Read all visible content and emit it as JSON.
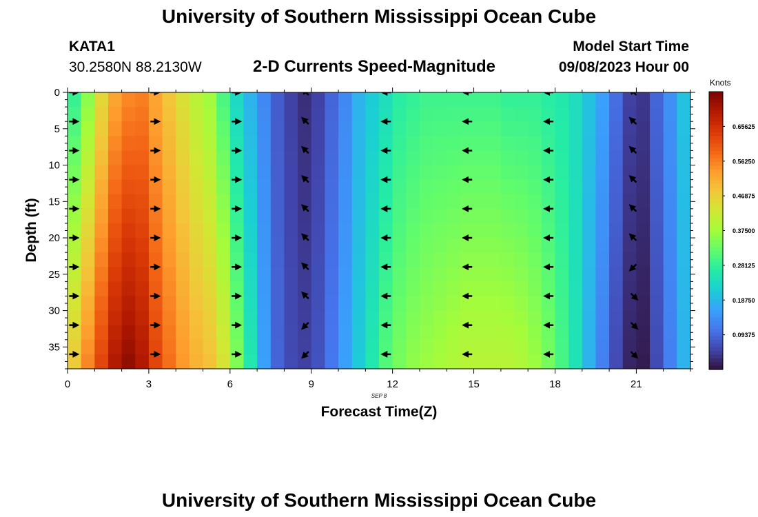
{
  "header": {
    "title": "University of Southern Mississippi Ocean Cube",
    "station": "KATA1",
    "coords": "30.2580N  88.2130W",
    "subtitle": "2-D Currents Speed-Magnitude",
    "model_start_label": "Model Start Time",
    "model_start_value": "09/08/2023 Hour 00"
  },
  "footer": {
    "title": "University of Southern Mississippi Ocean Cube"
  },
  "colorbar": {
    "unit": "Knots",
    "tick_labels": [
      "0.65625",
      "0.56250",
      "0.46875",
      "0.37500",
      "0.28125",
      "0.18750",
      "0.09375"
    ],
    "tick_values": [
      0.65625,
      0.5625,
      0.46875,
      0.375,
      0.28125,
      0.1875,
      0.09375
    ],
    "range": [
      0,
      0.75
    ],
    "colormap": [
      "#30123b",
      "#4145ab",
      "#4675ed",
      "#39a2fc",
      "#1bcfd4",
      "#24eca6",
      "#61fc6c",
      "#a4fc3b",
      "#d1e834",
      "#f3c63a",
      "#fe9b2d",
      "#f36315",
      "#d93806",
      "#b11901",
      "#7a0402"
    ]
  },
  "chart_data": {
    "type": "heatmap",
    "title": "2-D Currents Speed-Magnitude",
    "xlabel": "Forecast Time(Z)",
    "ylabel": "Depth (ft)",
    "date_label": "SEP 8",
    "x_ticks": [
      0,
      3,
      6,
      9,
      12,
      15,
      18,
      21
    ],
    "y_ticks": [
      0,
      5,
      10,
      15,
      20,
      25,
      30,
      35
    ],
    "xlim": [
      0,
      23
    ],
    "ylim": [
      38,
      0
    ],
    "value_unit": "Knots",
    "x": [
      0,
      0.5,
      1,
      1.5,
      2,
      2.5,
      3,
      3.5,
      4,
      4.5,
      5,
      5.5,
      6,
      6.5,
      7,
      7.5,
      8,
      8.5,
      9,
      9.5,
      10,
      10.5,
      11,
      11.5,
      12,
      12.5,
      13,
      13.5,
      14,
      14.5,
      15,
      15.5,
      16,
      16.5,
      17,
      17.5,
      18,
      18.5,
      19,
      19.5,
      20,
      20.5,
      21,
      21.5,
      22,
      22.5
    ],
    "surface_speed": [
      0.28,
      0.35,
      0.45,
      0.52,
      0.55,
      0.56,
      0.52,
      0.48,
      0.44,
      0.4,
      0.37,
      0.3,
      0.23,
      0.18,
      0.13,
      0.08,
      0.05,
      0.03,
      0.05,
      0.09,
      0.13,
      0.18,
      0.21,
      0.24,
      0.27,
      0.28,
      0.29,
      0.29,
      0.29,
      0.29,
      0.29,
      0.29,
      0.28,
      0.28,
      0.28,
      0.27,
      0.26,
      0.24,
      0.2,
      0.16,
      0.1,
      0.05,
      0.04,
      0.09,
      0.14,
      0.2
    ],
    "bottom_speed": [
      0.48,
      0.56,
      0.63,
      0.7,
      0.73,
      0.7,
      0.63,
      0.58,
      0.54,
      0.51,
      0.49,
      0.44,
      0.35,
      0.26,
      0.16,
      0.09,
      0.06,
      0.05,
      0.07,
      0.11,
      0.16,
      0.21,
      0.26,
      0.31,
      0.34,
      0.36,
      0.37,
      0.38,
      0.39,
      0.4,
      0.4,
      0.4,
      0.4,
      0.39,
      0.37,
      0.34,
      0.3,
      0.25,
      0.18,
      0.12,
      0.06,
      0.02,
      0.01,
      0.06,
      0.12,
      0.18
    ],
    "vectors": {
      "times": [
        0.2,
        3.2,
        6.2,
        8.8,
        11.8,
        14.8,
        17.8,
        20.9
      ],
      "depths": [
        0,
        4,
        8,
        12,
        16,
        20,
        24,
        28,
        32,
        36
      ],
      "directions": [
        [
          "E",
          "E",
          "E",
          "E",
          "E",
          "E",
          "E",
          "E",
          "E",
          "E"
        ],
        [
          "E",
          "E",
          "E",
          "E",
          "E",
          "E",
          "E",
          "E",
          "E",
          "E"
        ],
        [
          "E",
          "E",
          "E",
          "E",
          "E",
          "E",
          "E",
          "E",
          "E",
          "E"
        ],
        [
          "NW",
          "NW",
          "NW",
          "NW",
          "NW",
          "NW",
          "NW",
          "NW",
          "SW",
          "SW"
        ],
        [
          "W",
          "W",
          "W",
          "W",
          "W",
          "W",
          "W",
          "W",
          "W",
          "W"
        ],
        [
          "W",
          "W",
          "W",
          "W",
          "W",
          "W",
          "W",
          "W",
          "W",
          "W"
        ],
        [
          "W",
          "W",
          "W",
          "W",
          "W",
          "W",
          "W",
          "W",
          "W",
          "W"
        ],
        [
          "NW",
          "NW",
          "NW",
          "NW",
          "NW",
          "NW",
          "SW",
          "SE",
          "SE",
          "SE"
        ]
      ]
    }
  }
}
